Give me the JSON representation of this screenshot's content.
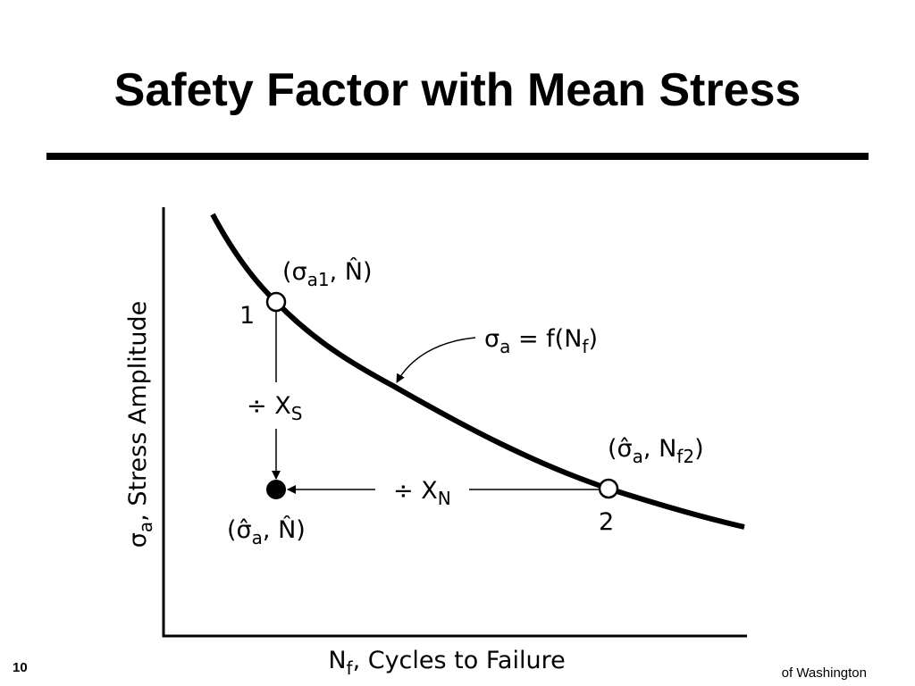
{
  "header": {
    "title": "Safety Factor with Mean Stress"
  },
  "diagram": {
    "y_axis_label": [
      "σ",
      "a",
      ", Stress Amplitude"
    ],
    "x_axis_label": [
      "N",
      "f",
      ", Cycles to Failure"
    ],
    "curve_label": [
      "σ",
      "a",
      " = f(N",
      "f",
      ")"
    ],
    "point_1": {
      "number": "1",
      "label": [
        "(σ",
        "a1",
        ",  N̂)"
      ]
    },
    "point_2": {
      "number": "2",
      "label": [
        "(σ̂",
        "a",
        ", N",
        "f2",
        ")"
      ]
    },
    "result_point": {
      "label": [
        "(σ̂",
        "a",
        ",  N̂)"
      ]
    },
    "stress_step": [
      "÷ X",
      "S"
    ],
    "life_step": [
      "÷ X",
      "N"
    ]
  },
  "footer": {
    "page_number": "10",
    "text": "of Washington"
  }
}
